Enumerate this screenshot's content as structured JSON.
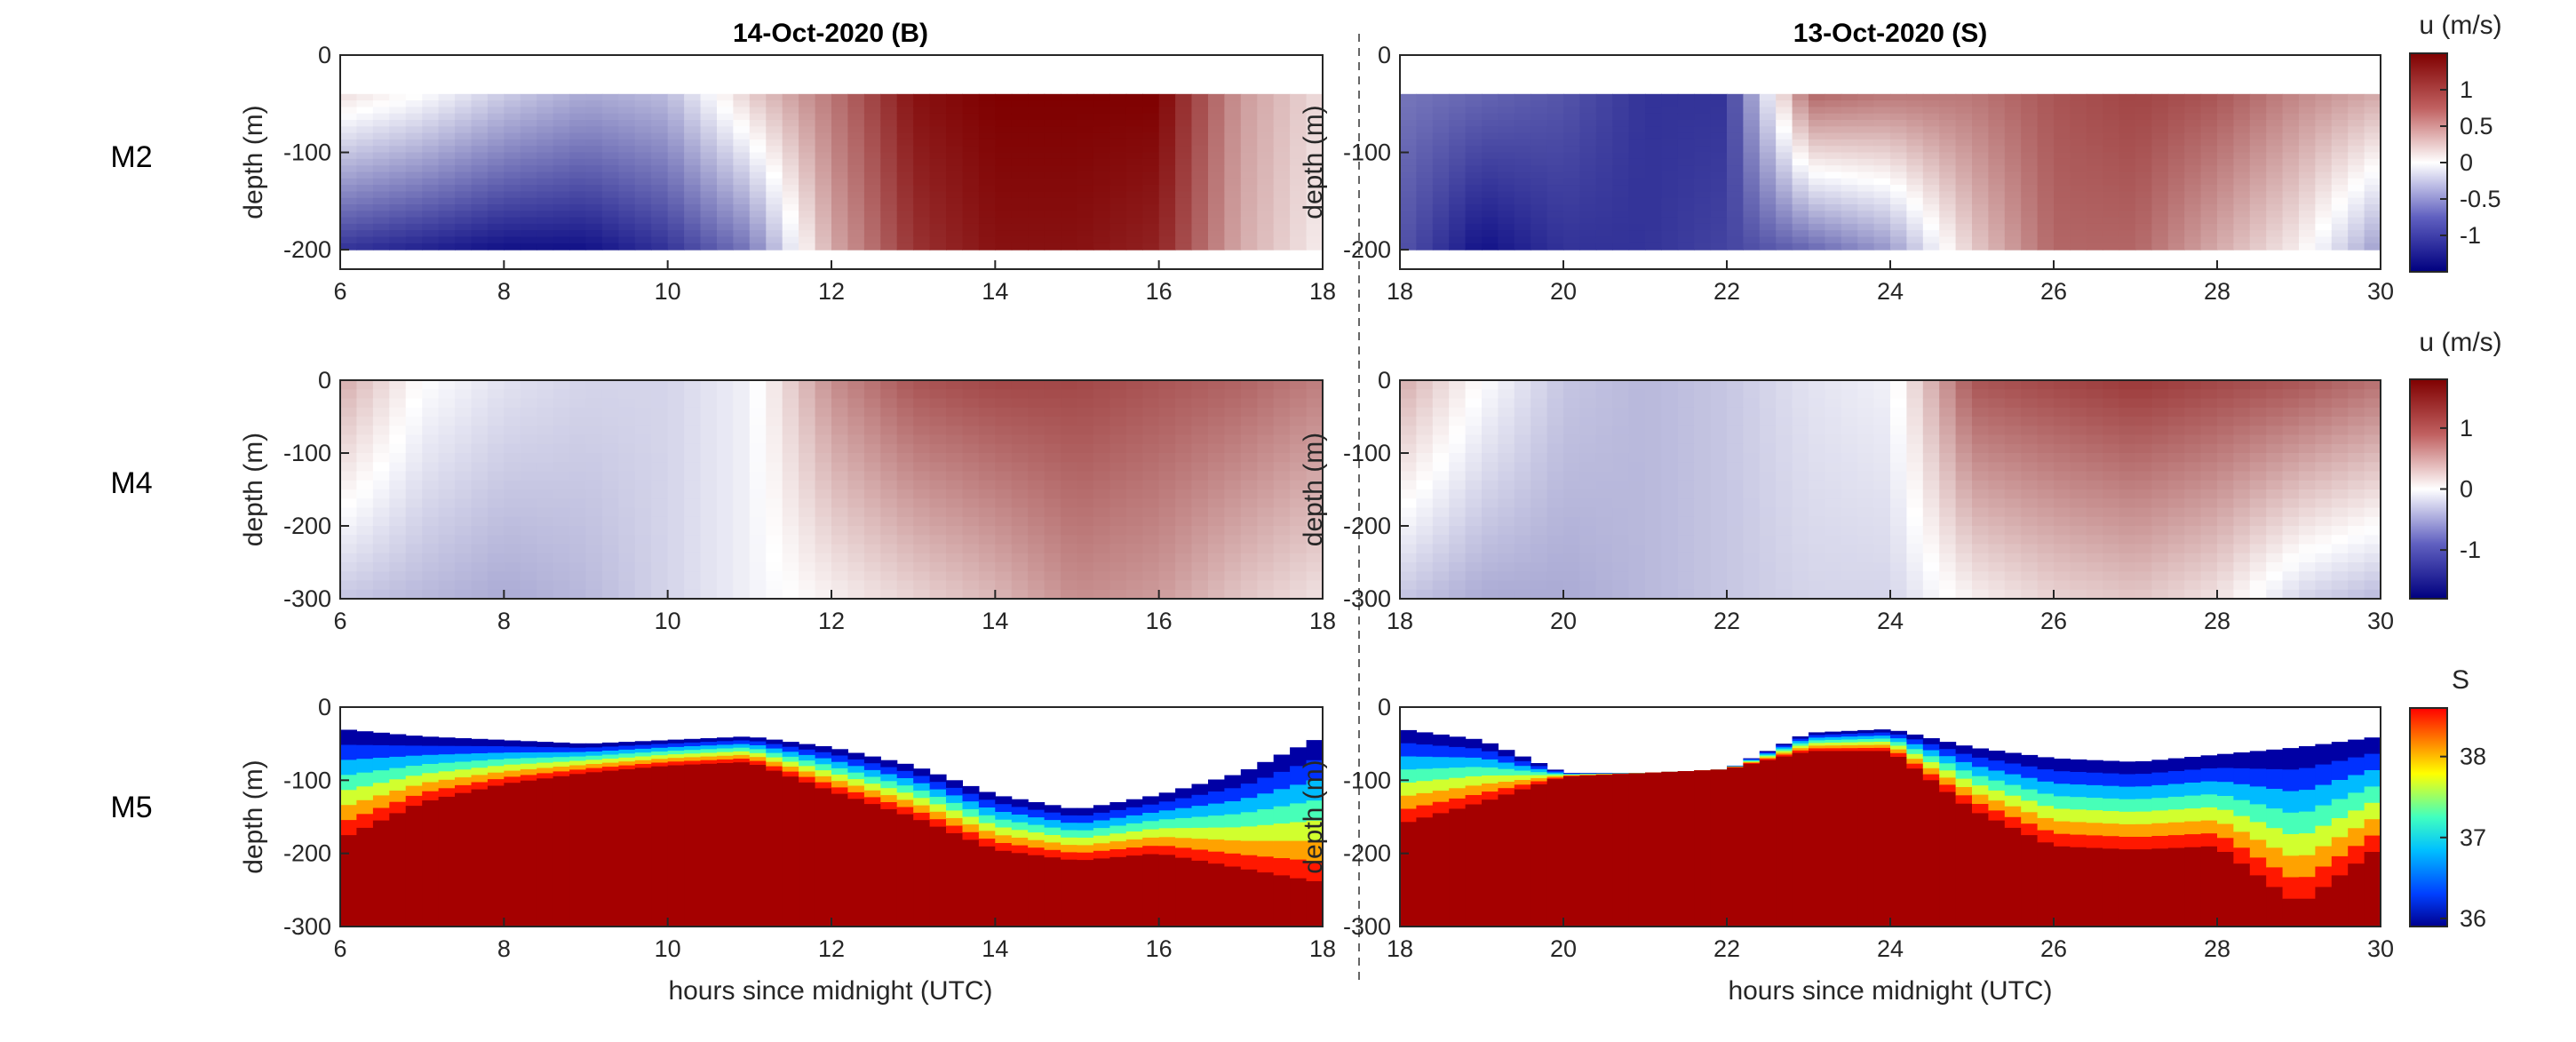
{
  "columns": [
    {
      "title": "14-Oct-2020 (B)",
      "xlim": [
        6,
        18
      ],
      "xticks": [
        6,
        8,
        10,
        12,
        14,
        16,
        18
      ]
    },
    {
      "title": "13-Oct-2020 (S)",
      "xlim": [
        18,
        30
      ],
      "xticks": [
        18,
        20,
        22,
        24,
        26,
        28,
        30
      ]
    }
  ],
  "rows": [
    {
      "label": "M2",
      "ylabel": "depth (m)",
      "ylim": [
        -220,
        0
      ],
      "yticks": [
        0,
        -100,
        -200
      ],
      "colorbar": {
        "label": "u (m/s)",
        "clim": [
          -1.5,
          1.5
        ],
        "ticks": [
          "1",
          "0.5",
          "0",
          "-0.5",
          "-1"
        ],
        "tickvals": [
          1,
          0.5,
          0,
          -0.5,
          -1
        ],
        "colormap": "blue-white-red"
      }
    },
    {
      "label": "M4",
      "ylabel": "depth (m)",
      "ylim": [
        -300,
        0
      ],
      "yticks": [
        0,
        -100,
        -200,
        -300
      ],
      "colorbar": {
        "label": "u (m/s)",
        "clim": [
          -1.8,
          1.8
        ],
        "ticks": [
          "1",
          "0",
          "-1"
        ],
        "tickvals": [
          1,
          0,
          -1
        ],
        "colormap": "blue-white-red"
      }
    },
    {
      "label": "M5",
      "ylabel": "depth (m)",
      "ylim": [
        -300,
        0
      ],
      "yticks": [
        0,
        -100,
        -200,
        -300
      ],
      "colorbar": {
        "label": "S",
        "clim": [
          35.9,
          38.6
        ],
        "ticks": [
          "38",
          "37",
          "36"
        ],
        "tickvals": [
          38,
          37,
          36
        ],
        "colormap": "jet"
      }
    }
  ],
  "xlabel": "hours since midnight (UTC)",
  "chart_data": {
    "type": "heatmap",
    "panels": [
      {
        "row": "M2",
        "column": "14-Oct-2020 (B)",
        "variable": "u (m/s)",
        "x": [
          6,
          7,
          8,
          9,
          10,
          11,
          12,
          13,
          14,
          15,
          16,
          17,
          18
        ],
        "depth_range": [
          -200,
          -40
        ],
        "surface_u": [
          0.2,
          0.0,
          -0.3,
          -0.5,
          -0.4,
          0.3,
          0.8,
          1.4,
          1.5,
          1.5,
          1.5,
          0.6,
          0.2
        ],
        "bottom_u": [
          -1.2,
          -1.3,
          -1.4,
          -1.4,
          -1.2,
          -0.8,
          0.5,
          1.2,
          1.4,
          1.4,
          1.3,
          0.5,
          0.1
        ]
      },
      {
        "row": "M2",
        "column": "13-Oct-2020 (S)",
        "variable": "u (m/s)",
        "x": [
          18,
          19,
          20,
          21,
          22,
          23,
          24,
          25,
          26,
          27,
          28,
          29,
          30
        ],
        "depth_range": [
          -200,
          -40
        ],
        "surface_u": [
          -0.8,
          -0.9,
          -1.0,
          -1.2,
          -1.2,
          0.9,
          0.8,
          0.8,
          1.0,
          1.1,
          1.0,
          0.7,
          0.5
        ],
        "bottom_u": [
          -1.0,
          -1.4,
          -1.2,
          -1.2,
          -1.1,
          -0.9,
          -0.6,
          0.3,
          0.9,
          0.9,
          0.5,
          0.1,
          -0.6
        ]
      },
      {
        "row": "M4",
        "column": "14-Oct-2020 (B)",
        "variable": "u (m/s)",
        "x": [
          6,
          7,
          8,
          9,
          10,
          11,
          12,
          13,
          14,
          15,
          16,
          17,
          18
        ],
        "depth_range": [
          -300,
          0
        ],
        "surface_u": [
          0.6,
          0.0,
          -0.2,
          -0.3,
          -0.3,
          -0.1,
          0.8,
          1.2,
          1.3,
          1.3,
          1.2,
          1.1,
          0.9
        ],
        "bottom_u": [
          -0.4,
          -0.5,
          -0.6,
          -0.5,
          -0.3,
          -0.1,
          0.1,
          0.3,
          0.5,
          0.8,
          0.7,
          0.4,
          0.2
        ]
      },
      {
        "row": "M4",
        "column": "13-Oct-2020 (S)",
        "variable": "u (m/s)",
        "x": [
          18,
          19,
          20,
          21,
          22,
          23,
          24,
          25,
          26,
          27,
          28,
          29,
          30
        ],
        "depth_range": [
          -300,
          0
        ],
        "surface_u": [
          0.6,
          0.0,
          -0.4,
          -0.5,
          -0.4,
          -0.2,
          -0.1,
          1.2,
          1.3,
          1.4,
          1.3,
          1.2,
          1.0
        ],
        "bottom_u": [
          -0.4,
          -0.6,
          -0.6,
          -0.5,
          -0.4,
          -0.3,
          -0.3,
          0.1,
          0.3,
          0.4,
          0.2,
          -0.3,
          -0.5
        ]
      },
      {
        "row": "M5",
        "column": "14-Oct-2020 (B)",
        "variable": "S",
        "x": [
          6,
          7,
          8,
          9,
          10,
          11,
          12,
          13,
          14,
          15,
          16,
          17,
          18
        ],
        "surface_depth": [
          -30,
          -40,
          -45,
          -50,
          -45,
          -40,
          -55,
          -80,
          -120,
          -140,
          -120,
          -90,
          -40
        ],
        "halocline_depth": [
          -180,
          -130,
          -105,
          -90,
          -80,
          -75,
          -115,
          -150,
          -195,
          -210,
          -200,
          -220,
          -240
        ],
        "deep_salinity": 38.5
      },
      {
        "row": "M5",
        "column": "13-Oct-2020 (S)",
        "variable": "S",
        "x": [
          18,
          19,
          20,
          21,
          22,
          23,
          24,
          25,
          26,
          27,
          28,
          29,
          30
        ],
        "surface_depth": [
          -30,
          -45,
          -90,
          -90,
          -85,
          -35,
          -30,
          -55,
          -70,
          -75,
          -65,
          -55,
          -40
        ],
        "halocline_depth": [
          -160,
          -130,
          -95,
          -90,
          -85,
          -60,
          -60,
          -140,
          -190,
          -195,
          -190,
          -270,
          -190
        ],
        "deep_salinity": 38.5
      }
    ]
  }
}
